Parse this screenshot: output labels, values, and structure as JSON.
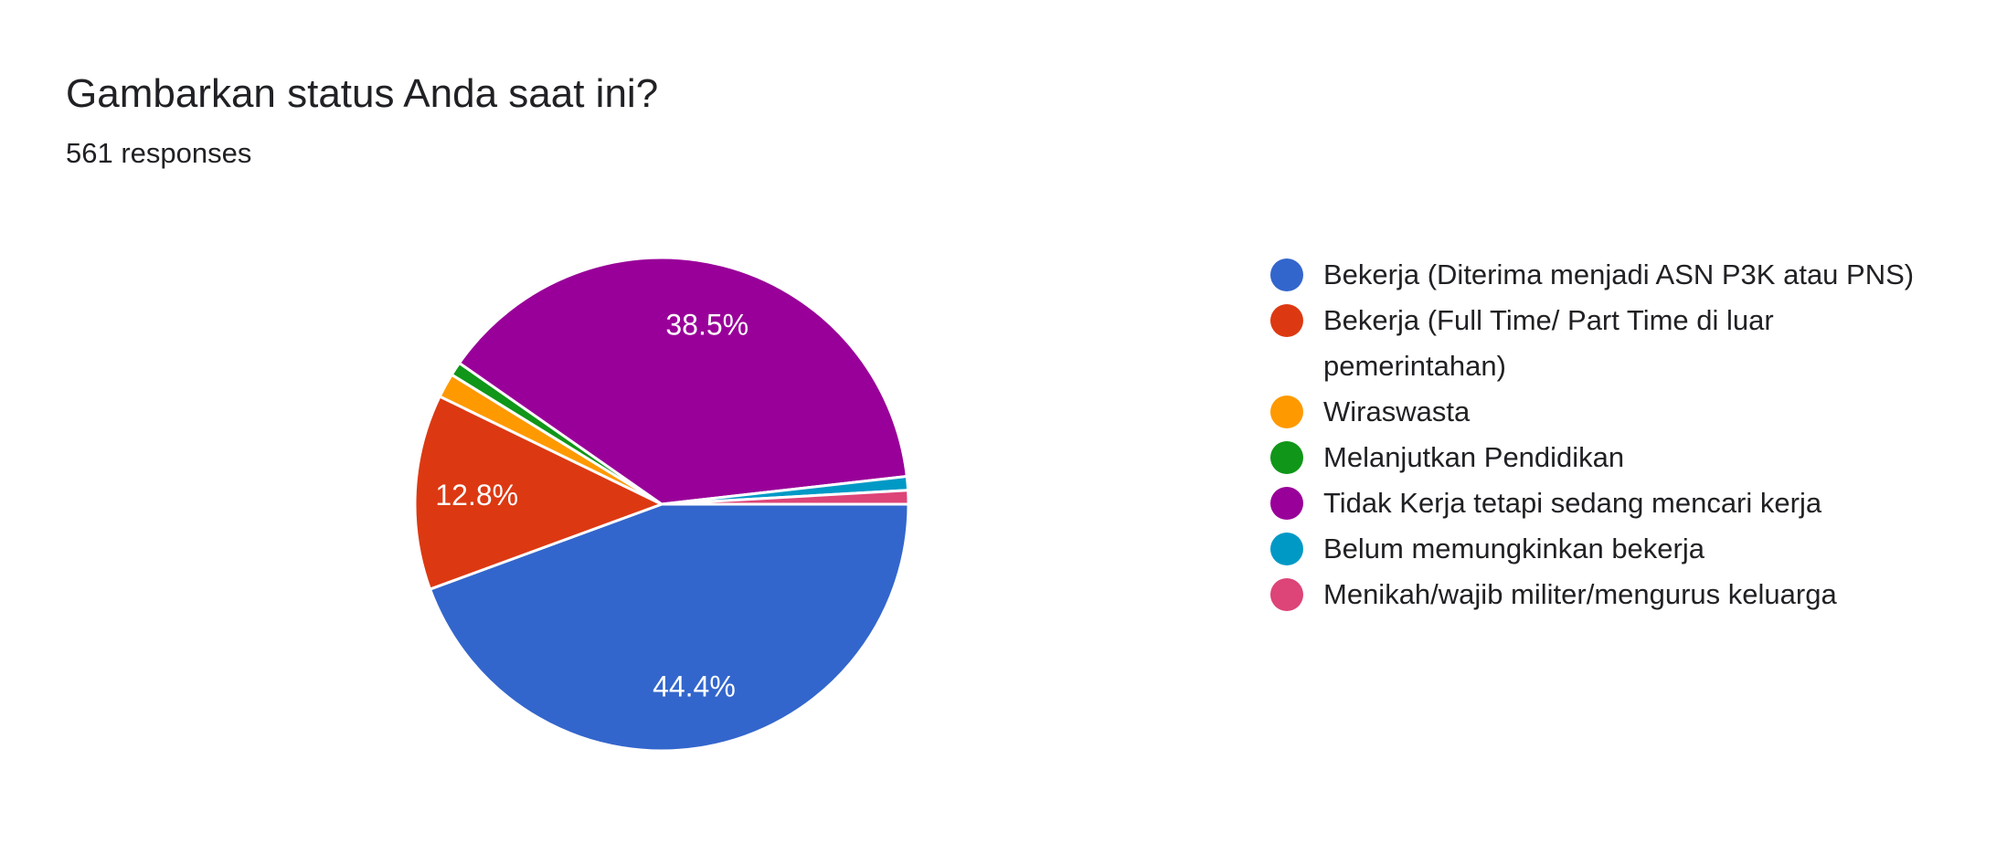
{
  "title": "Gambarkan status Anda saat ini?",
  "responses": "561 responses",
  "chart_data": {
    "type": "pie",
    "title": "Gambarkan status Anda saat ini?",
    "start_angle": "3 o'clock, clockwise",
    "legend_position": "right",
    "slices": [
      {
        "label": "Bekerja (Diterima menjadi ASN P3K atau PNS)",
        "value": 44.4,
        "color": "#3366cc",
        "data_label": "44.4%"
      },
      {
        "label": "Bekerja (Full Time/ Part Time di luar pemerintahan)",
        "value": 12.8,
        "color": "#dc3912",
        "data_label": "12.8%"
      },
      {
        "label": "Wiraswasta",
        "value": 1.6,
        "color": "#ff9900",
        "data_label": ""
      },
      {
        "label": "Melanjutkan Pendidikan",
        "value": 0.9,
        "color": "#109618",
        "data_label": ""
      },
      {
        "label": "Tidak Kerja tetapi sedang mencari kerja",
        "value": 38.5,
        "color": "#990099",
        "data_label": "38.5%"
      },
      {
        "label": "Belum memungkinkan bekerja",
        "value": 0.9,
        "color": "#0099c6",
        "data_label": ""
      },
      {
        "label": "Menikah/wajib militer/mengurus keluarga",
        "value": 0.9,
        "color": "#dd4477",
        "data_label": ""
      }
    ]
  }
}
